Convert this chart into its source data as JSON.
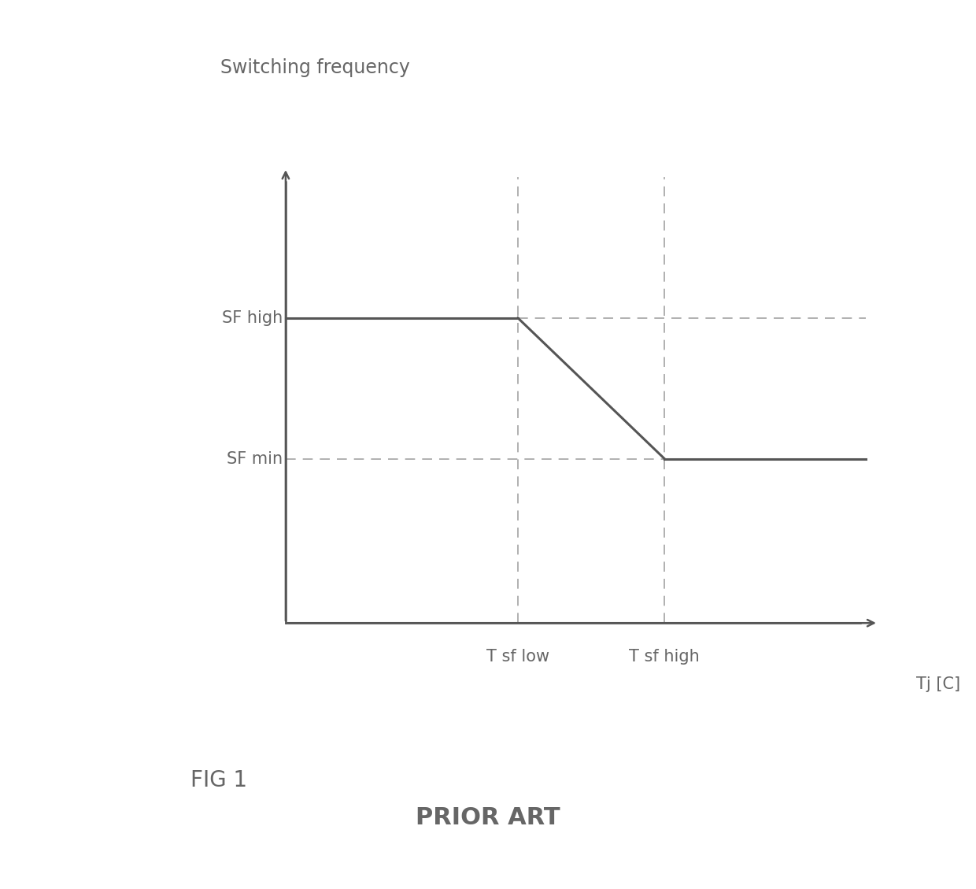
{
  "title_y_label": "Switching frequency",
  "title_x_label": "Tj [C]",
  "sf_high": 0.65,
  "sf_min": 0.35,
  "t_sf_low": 0.38,
  "t_sf_high": 0.62,
  "fig1_label": "FIG 1",
  "prior_art_label": "PRIOR ART",
  "line_color": "#555555",
  "dashed_color": "#aaaaaa",
  "background_color": "#ffffff",
  "font_color": "#666666"
}
